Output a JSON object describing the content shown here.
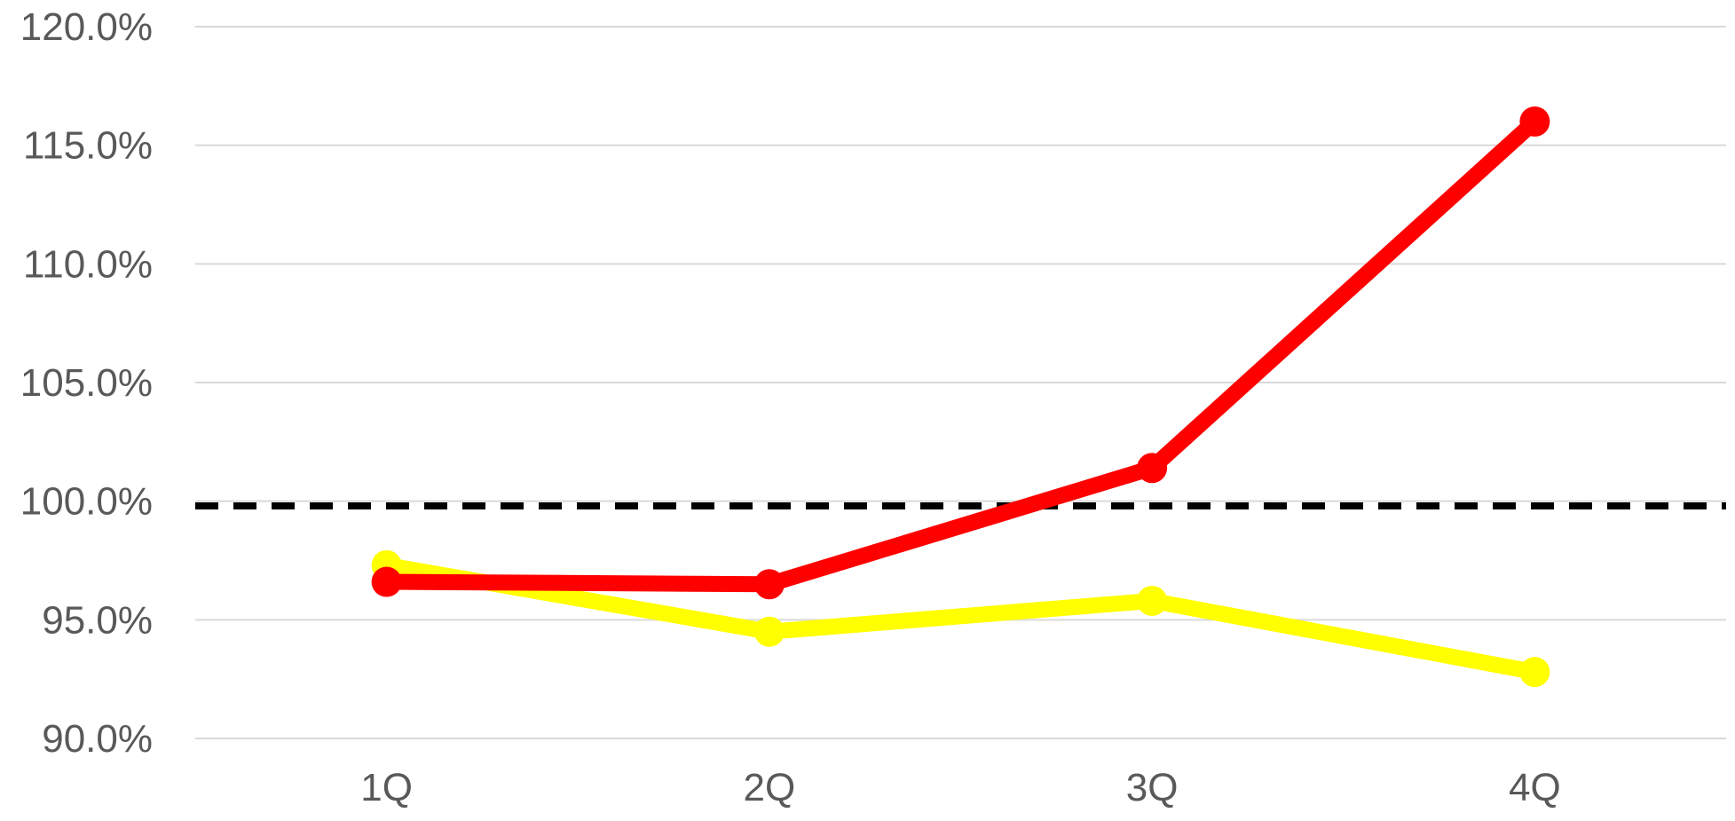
{
  "chart_data": {
    "type": "line",
    "title": "",
    "xlabel": "",
    "ylabel": "",
    "categories": [
      "1Q",
      "2Q",
      "3Q",
      "4Q"
    ],
    "ylim": [
      90.0,
      120.0
    ],
    "ytick_values": [
      90,
      95,
      100,
      105,
      110,
      115,
      120
    ],
    "ytick_labels": [
      "90.0%",
      "95.0%",
      "100.0%",
      "105.0%",
      "110.0%",
      "115.0%",
      "120.0%"
    ],
    "grid": "horizontal",
    "legend": "none",
    "reference_line": {
      "value": 99.8,
      "color": "#000000",
      "style": "dashed"
    },
    "series": [
      {
        "color": "#FFFF00",
        "values": [
          97.3,
          94.5,
          95.8,
          92.8
        ]
      },
      {
        "color": "#FF0000",
        "values": [
          96.6,
          96.5,
          101.4,
          116.0
        ]
      }
    ]
  }
}
